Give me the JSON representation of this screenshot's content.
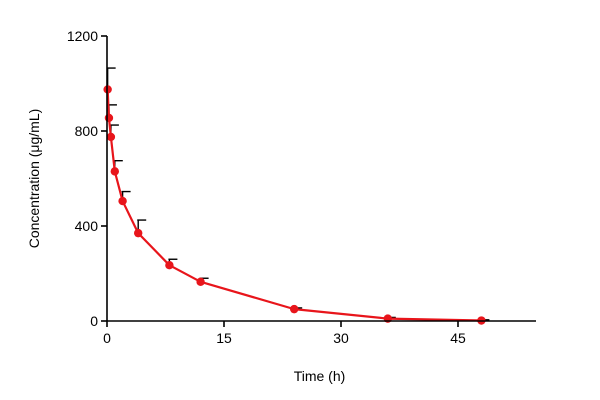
{
  "chart_data": {
    "type": "line",
    "title": "",
    "xlabel": "Time (h)",
    "ylabel": "Concentration (μg/mL)",
    "xlim": [
      0,
      55
    ],
    "ylim": [
      0,
      1200
    ],
    "xticks": [
      0,
      15,
      30,
      45
    ],
    "yticks": [
      0,
      400,
      800,
      1200
    ],
    "grid": false,
    "legend": "none",
    "colors": {
      "series": "#e8151b",
      "axis": "#000000",
      "error_bar": "#000000"
    },
    "series": [
      {
        "x": [
          0.083,
          0.25,
          0.5,
          1,
          2,
          4,
          8,
          12,
          24,
          36,
          48
        ],
        "y": [
          975,
          855,
          775,
          630,
          505,
          370,
          235,
          165,
          50,
          10,
          2
        ],
        "error_upper": [
          90,
          55,
          50,
          45,
          40,
          55,
          25,
          15,
          5,
          5,
          3
        ]
      }
    ]
  }
}
